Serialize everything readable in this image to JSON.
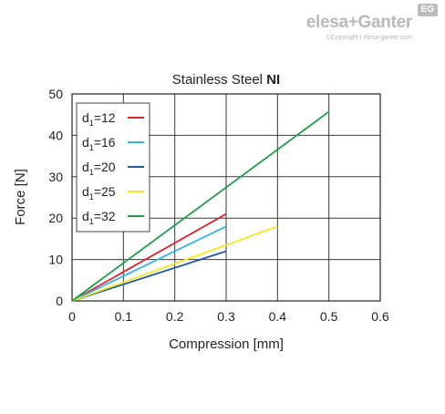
{
  "brand": {
    "logo_text": "elesa+Ganter",
    "badge_text": "EG",
    "copyright": "©Copyright | elesa-ganter.com"
  },
  "chart_data": {
    "type": "line",
    "title": "Stainless Steel ",
    "title_bold": "NI",
    "xlabel": "Compression [mm]",
    "ylabel": "Force [N]",
    "xlim": [
      0,
      0.6
    ],
    "ylim": [
      0,
      50
    ],
    "xticks": [
      "0",
      "0.1",
      "0.2",
      "0.3",
      "0.4",
      "0.5",
      "0.6"
    ],
    "yticks": [
      "0",
      "10",
      "20",
      "30",
      "40",
      "50"
    ],
    "grid": true,
    "legend_position": "top-left",
    "series": [
      {
        "name": "d1=12",
        "sub": "1",
        "prefix": "d",
        "suffix": "=12",
        "color": "#e3202a",
        "x": [
          0,
          0.3
        ],
        "y": [
          0,
          21
        ]
      },
      {
        "name": "d1=16",
        "sub": "1",
        "prefix": "d",
        "suffix": "=16",
        "color": "#33b5e6",
        "x": [
          0,
          0.3
        ],
        "y": [
          0,
          18
        ]
      },
      {
        "name": "d1=20",
        "sub": "1",
        "prefix": "d",
        "suffix": "=20",
        "color": "#1f5aa6",
        "x": [
          0,
          0.3
        ],
        "y": [
          0,
          12
        ]
      },
      {
        "name": "d1=25",
        "sub": "1",
        "prefix": "d",
        "suffix": "=25",
        "color": "#f2ea1c",
        "x": [
          0,
          0.4
        ],
        "y": [
          0,
          18
        ]
      },
      {
        "name": "d1=32",
        "sub": "1",
        "prefix": "d",
        "suffix": "=32",
        "color": "#1e9e4a",
        "x": [
          0,
          0.5
        ],
        "y": [
          0,
          45.7
        ]
      }
    ]
  }
}
